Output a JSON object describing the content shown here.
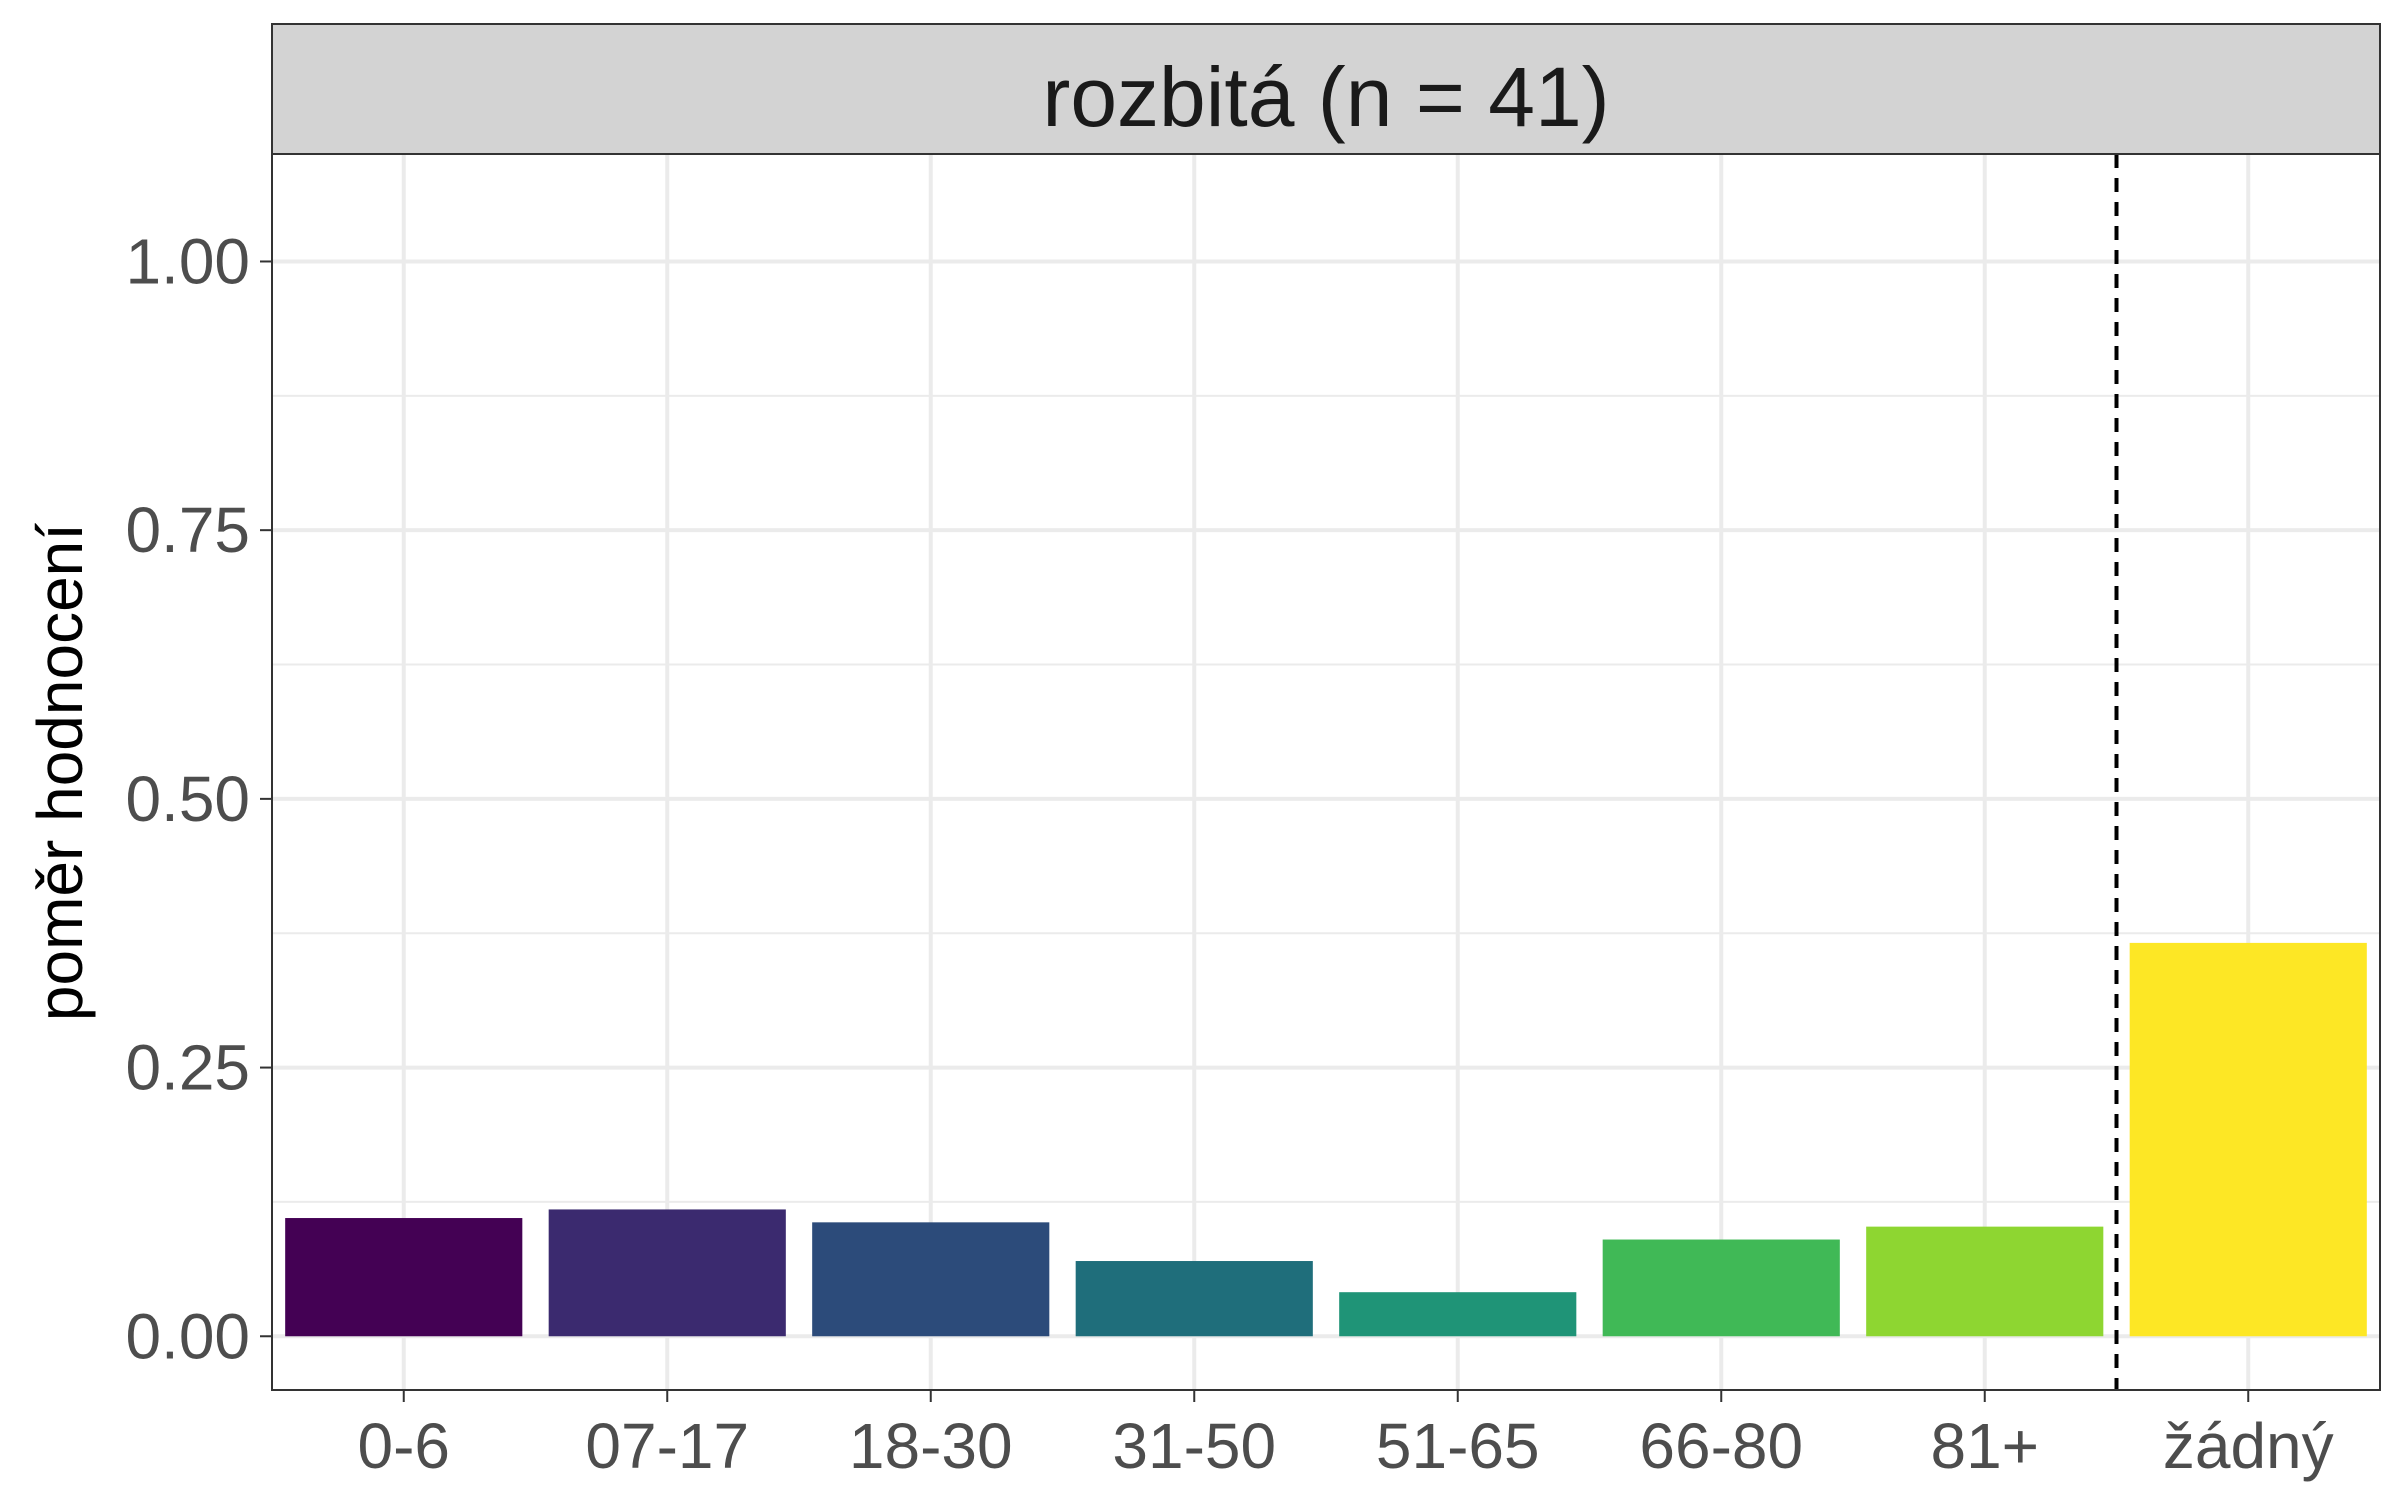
{
  "chart_data": {
    "type": "bar",
    "facet_title": "rozbitá (n = 41)",
    "ylabel": "poměr hodnocení",
    "xlabel": "",
    "categories": [
      "0-6",
      "07-17",
      "18-30",
      "31-50",
      "51-65",
      "66-80",
      "81+",
      "žádný"
    ],
    "values": [
      0.11,
      0.118,
      0.106,
      0.07,
      0.041,
      0.09,
      0.102,
      0.366
    ],
    "colors": [
      "#440154",
      "#3b2a6f",
      "#2c4b7a",
      "#1f6e7b",
      "#1f9477",
      "#40b956",
      "#8ed631",
      "#fde725"
    ],
    "ylim": [
      -0.05,
      1.1
    ],
    "yticks": [
      0,
      0.25,
      0.5,
      0.75,
      1
    ],
    "ytick_labels": [
      "0.00",
      "0.25",
      "0.50",
      "0.75",
      "1.00"
    ],
    "separator_after_category": "81+",
    "grid": true
  }
}
